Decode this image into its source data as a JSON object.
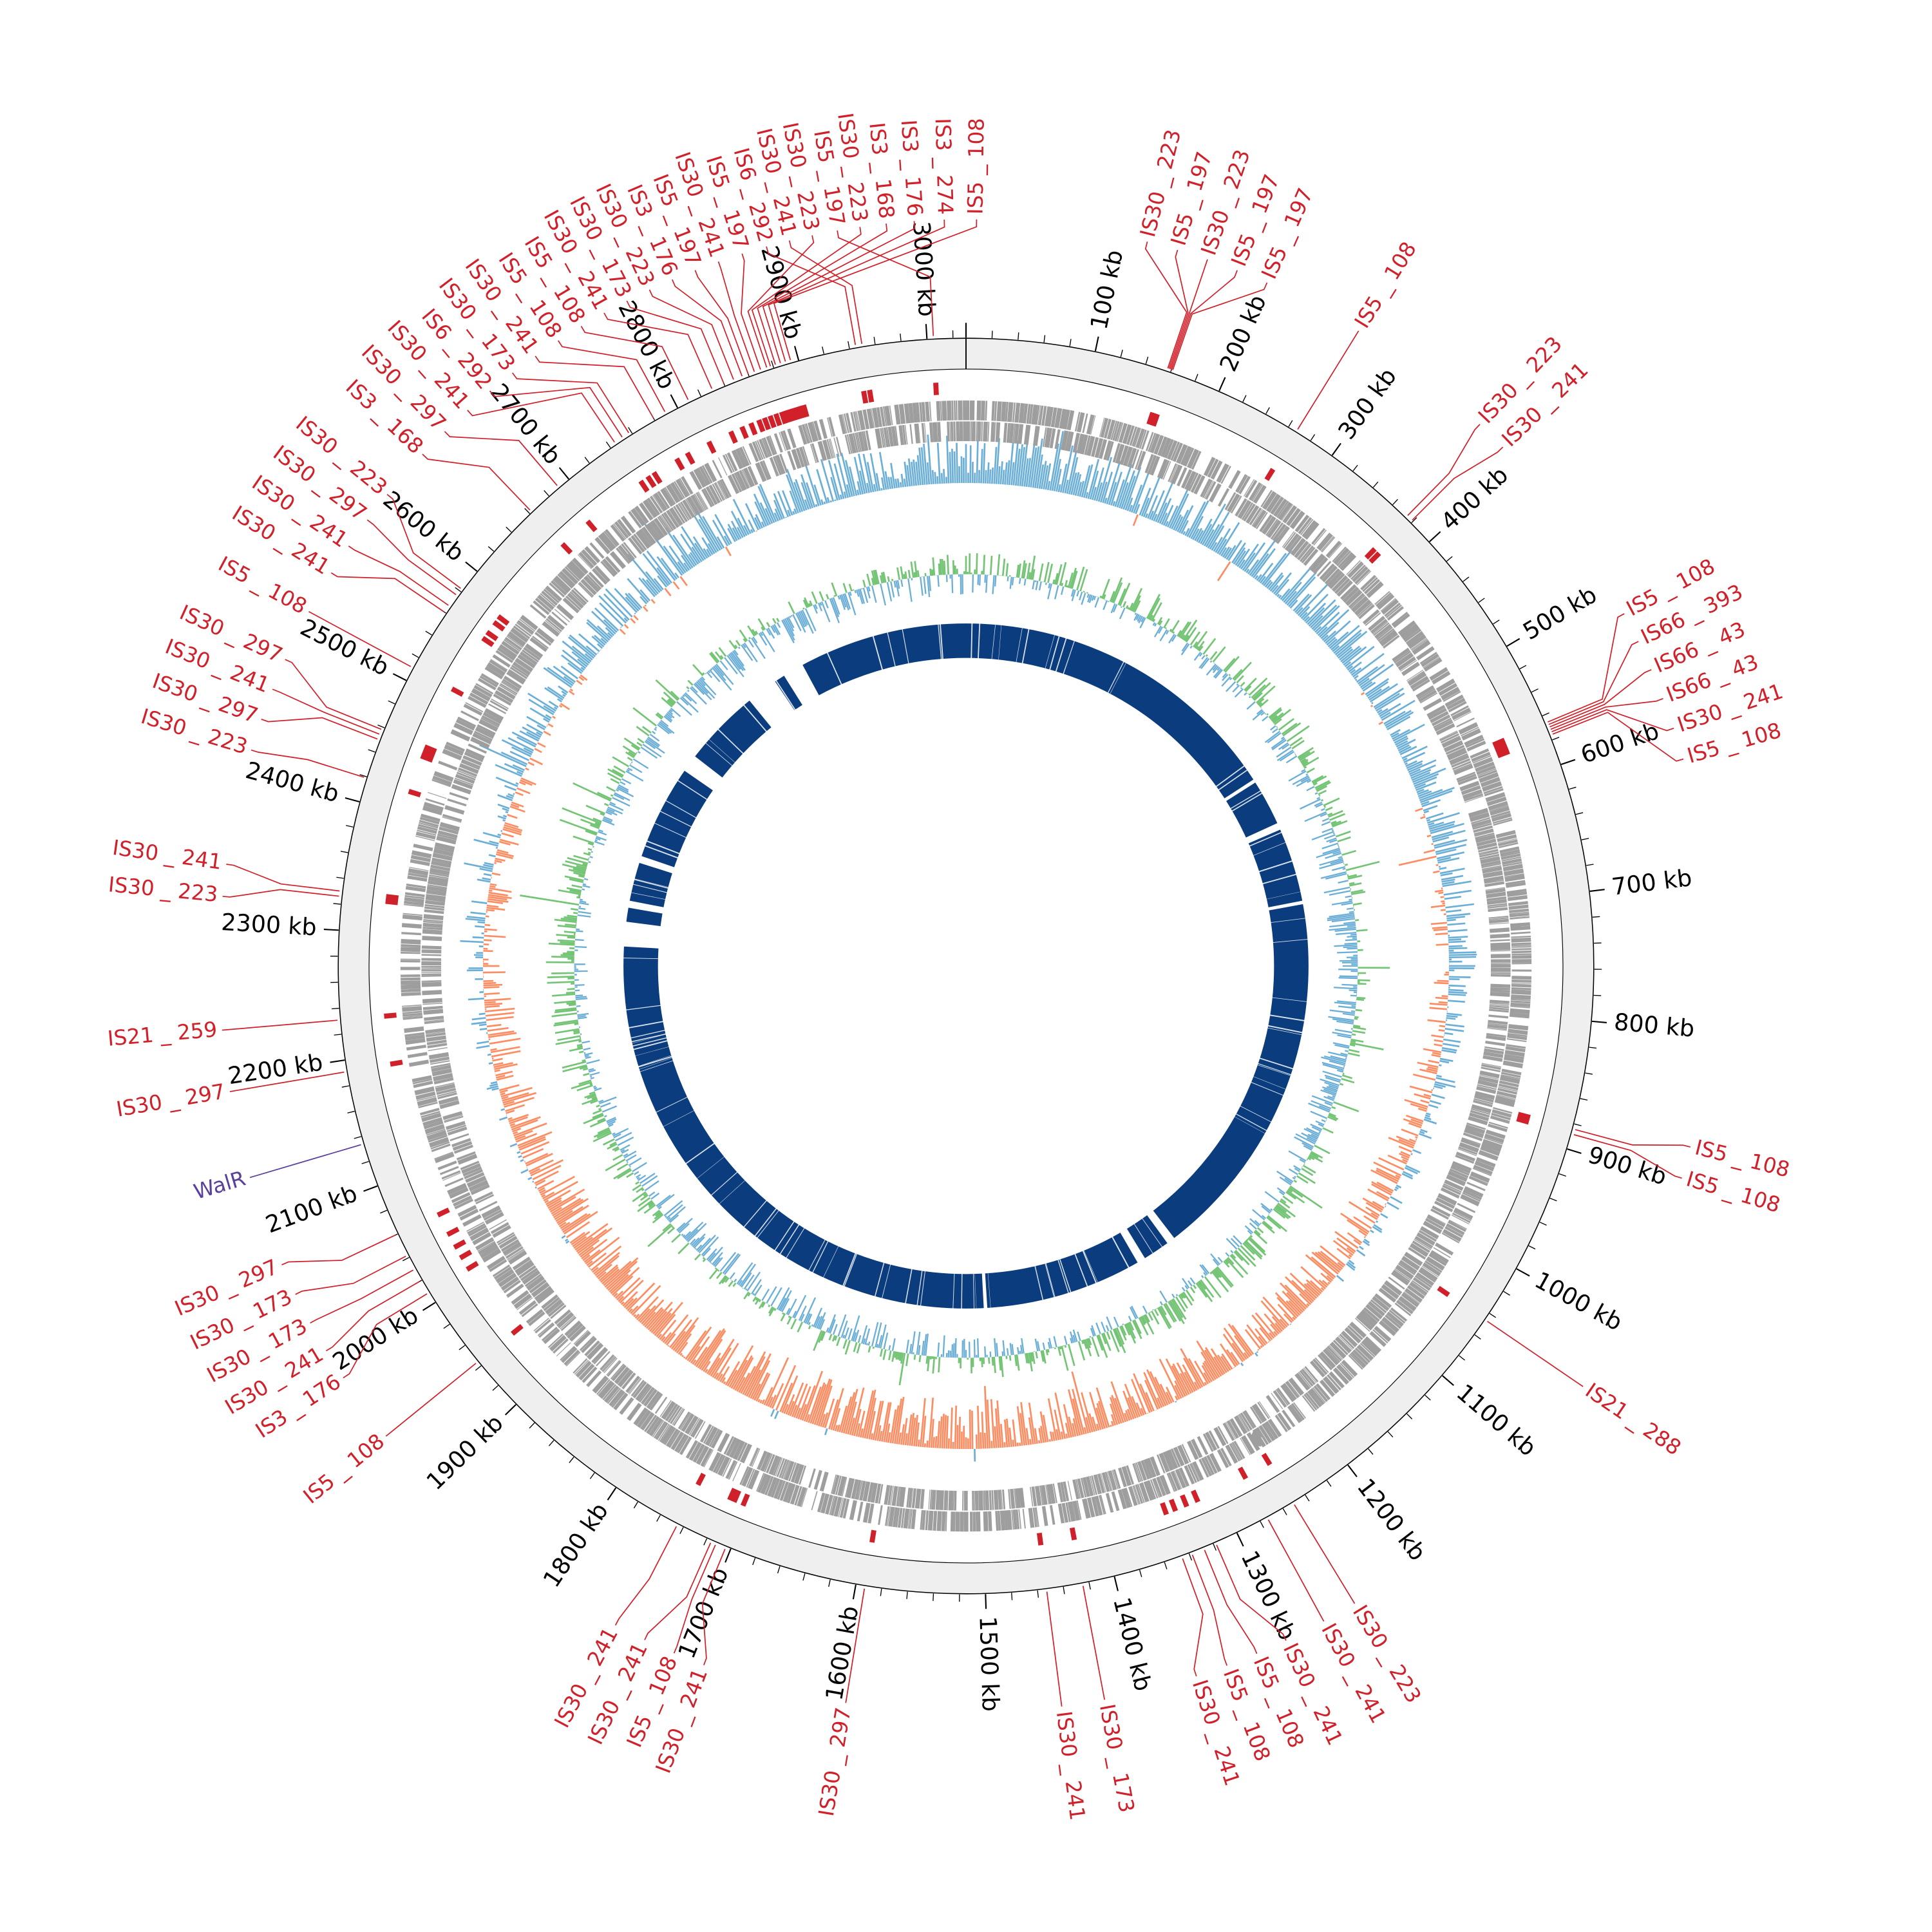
{
  "chart_data": {
    "type": "circular-genome-map",
    "genome_length_kb": 3030,
    "tick_interval_kb": 100,
    "minor_tick_interval_kb": 20,
    "tick_unit": "kb",
    "tick_labels": [
      "100 kb",
      "200 kb",
      "300 kb",
      "400 kb",
      "500 kb",
      "600 kb",
      "700 kb",
      "800 kb",
      "900 kb",
      "1000 kb",
      "1100 kb",
      "1200 kb",
      "1300 kb",
      "1400 kb",
      "1500 kb",
      "1600 kb",
      "1700 kb",
      "1800 kb",
      "1900 kb",
      "2000 kb",
      "2100 kb",
      "2200 kb",
      "2300 kb",
      "2400 kb",
      "2500 kb",
      "2600 kb",
      "2700 kb",
      "2800 kb",
      "2900 kb",
      "3000 kb"
    ],
    "tracks": [
      "ideogram",
      "IS elements",
      "genes (both strands)",
      "GC skew",
      "GC content",
      "core regions"
    ],
    "features": [
      {
        "label": "IS5 _ 108",
        "position_kb": 267,
        "kind": "IS"
      },
      {
        "label": "IS30 _ 223",
        "position_kb": 374,
        "kind": "IS"
      },
      {
        "label": "IS30 _ 241",
        "position_kb": 379,
        "kind": "IS"
      },
      {
        "label": "IS5 _ 108",
        "position_kb": 566,
        "kind": "IS"
      },
      {
        "label": "IS66 _ 393",
        "position_kb": 568,
        "kind": "IS"
      },
      {
        "label": "IS66 _ 43",
        "position_kb": 570,
        "kind": "IS"
      },
      {
        "label": "IS66 _ 43",
        "position_kb": 572,
        "kind": "IS"
      },
      {
        "label": "IS30 _ 241",
        "position_kb": 574,
        "kind": "IS"
      },
      {
        "label": "IS5 _ 108",
        "position_kb": 576,
        "kind": "IS"
      },
      {
        "label": "IS5 _ 108",
        "position_kb": 884,
        "kind": "IS"
      },
      {
        "label": "IS5 _ 108",
        "position_kb": 888,
        "kind": "IS"
      },
      {
        "label": "IS21 _ 288",
        "position_kb": 1046,
        "kind": "IS"
      },
      {
        "label": "IS30 _ 223",
        "position_kb": 1251,
        "kind": "IS"
      },
      {
        "label": "IS30 _ 241",
        "position_kb": 1274,
        "kind": "IS"
      },
      {
        "label": "IS30 _ 241",
        "position_kb": 1318,
        "kind": "IS"
      },
      {
        "label": "IS5 _ 108",
        "position_kb": 1328,
        "kind": "IS"
      },
      {
        "label": "IS5 _ 108",
        "position_kb": 1338,
        "kind": "IS"
      },
      {
        "label": "IS30 _ 241",
        "position_kb": 1346,
        "kind": "IS"
      },
      {
        "label": "IS30 _ 173",
        "position_kb": 1425,
        "kind": "IS"
      },
      {
        "label": "IS30 _ 241",
        "position_kb": 1453,
        "kind": "IS"
      },
      {
        "label": "IS30 _ 297",
        "position_kb": 1593,
        "kind": "IS"
      },
      {
        "label": "IS30 _ 241",
        "position_kb": 1704,
        "kind": "IS"
      },
      {
        "label": "IS5 _ 108",
        "position_kb": 1712,
        "kind": "IS"
      },
      {
        "label": "IS30 _ 241",
        "position_kb": 1716,
        "kind": "IS"
      },
      {
        "label": "IS30 _ 241",
        "position_kb": 1745,
        "kind": "IS"
      },
      {
        "label": "IS5 _ 108",
        "position_kb": 1944,
        "kind": "IS"
      },
      {
        "label": "IS3 _ 176",
        "position_kb": 2009,
        "kind": "IS"
      },
      {
        "label": "IS30 _ 241",
        "position_kb": 2020,
        "kind": "IS"
      },
      {
        "label": "IS30 _ 173",
        "position_kb": 2030,
        "kind": "IS"
      },
      {
        "label": "IS30 _ 173",
        "position_kb": 2042,
        "kind": "IS"
      },
      {
        "label": "IS30 _ 297",
        "position_kb": 2060,
        "kind": "IS"
      },
      {
        "label": "WalR",
        "position_kb": 2134,
        "kind": "gene"
      },
      {
        "label": "IS30 _ 297",
        "position_kb": 2191,
        "kind": "IS"
      },
      {
        "label": "IS21 _ 259",
        "position_kb": 2231,
        "kind": "IS"
      },
      {
        "label": "IS30 _ 223",
        "position_kb": 2326,
        "kind": "IS"
      },
      {
        "label": "IS30 _ 241",
        "position_kb": 2330,
        "kind": "IS"
      },
      {
        "label": "IS30 _ 223",
        "position_kb": 2419,
        "kind": "IS"
      },
      {
        "label": "IS30 _ 297",
        "position_kb": 2450,
        "kind": "IS"
      },
      {
        "label": "IS30 _ 241",
        "position_kb": 2454,
        "kind": "IS"
      },
      {
        "label": "IS30 _ 297",
        "position_kb": 2458,
        "kind": "IS"
      },
      {
        "label": "IS5 _ 108",
        "position_kb": 2511,
        "kind": "IS"
      },
      {
        "label": "IS30 _ 241",
        "position_kb": 2560,
        "kind": "IS"
      },
      {
        "label": "IS30 _ 241",
        "position_kb": 2566,
        "kind": "IS"
      },
      {
        "label": "IS30 _ 297",
        "position_kb": 2576,
        "kind": "IS"
      },
      {
        "label": "IS30 _ 223",
        "position_kb": 2582,
        "kind": "IS"
      },
      {
        "label": "IS3 _ 168",
        "position_kb": 2662,
        "kind": "IS"
      },
      {
        "label": "IS30 _ 297",
        "position_kb": 2690,
        "kind": "IS"
      },
      {
        "label": "IS30 _ 241",
        "position_kb": 2745,
        "kind": "IS"
      },
      {
        "label": "IS6 _ 292",
        "position_kb": 2752,
        "kind": "IS"
      },
      {
        "label": "IS30 _ 173",
        "position_kb": 2758,
        "kind": "IS"
      },
      {
        "label": "IS30 _ 241",
        "position_kb": 2780,
        "kind": "IS"
      },
      {
        "label": "IS5 _ 108",
        "position_kb": 2790,
        "kind": "IS"
      },
      {
        "label": "IS5 _ 108",
        "position_kb": 2810,
        "kind": "IS"
      },
      {
        "label": "IS30 _ 241",
        "position_kb": 2830,
        "kind": "IS"
      },
      {
        "label": "IS30 _ 173",
        "position_kb": 2840,
        "kind": "IS"
      },
      {
        "label": "IS30 _ 223",
        "position_kb": 2848,
        "kind": "IS"
      },
      {
        "label": "IS3 _ 176",
        "position_kb": 2855,
        "kind": "IS"
      },
      {
        "label": "IS5 _ 197",
        "position_kb": 2860,
        "kind": "IS"
      },
      {
        "label": "IS30 _ 241",
        "position_kb": 2865,
        "kind": "IS"
      },
      {
        "label": "IS5 _ 197",
        "position_kb": 2870,
        "kind": "IS"
      },
      {
        "label": "IS6 _ 292",
        "position_kb": 2945,
        "kind": "IS"
      },
      {
        "label": "IS30 _ 241",
        "position_kb": 2950,
        "kind": "IS"
      },
      {
        "label": "IS30 _ 223",
        "position_kb": 2875,
        "kind": "IS"
      },
      {
        "label": "IS5 _ 197",
        "position_kb": 3005,
        "kind": "IS"
      },
      {
        "label": "IS30 _ 223",
        "position_kb": 2878,
        "kind": "IS"
      },
      {
        "label": "IS3 _ 168",
        "position_kb": 2882,
        "kind": "IS"
      },
      {
        "label": "IS3 _ 176",
        "position_kb": 2886,
        "kind": "IS"
      },
      {
        "label": "IS3 _ 274",
        "position_kb": 2890,
        "kind": "IS"
      },
      {
        "label": "IS5 _ 108",
        "position_kb": 2894,
        "kind": "IS"
      },
      {
        "label": "IS30 _ 223",
        "position_kb": 157,
        "kind": "IS"
      },
      {
        "label": "IS5 _ 197",
        "position_kb": 158,
        "kind": "IS"
      },
      {
        "label": "IS30 _ 223",
        "position_kb": 159,
        "kind": "IS"
      },
      {
        "label": "IS5 _ 197",
        "position_kb": 160,
        "kind": "IS"
      },
      {
        "label": "IS5 _ 197",
        "position_kb": 161,
        "kind": "IS"
      }
    ]
  },
  "colors": {
    "is_element": "#d0202a",
    "gene_feature": "#5a3f9e",
    "ideogram_fill": "#efefef",
    "genes": "#9e9e9e",
    "skew_positive": "#9ecae1",
    "skew_positive_line": "#6baed6",
    "skew_negative": "#fc8d62",
    "gc_positive": "#74c476",
    "gc_negative": "#6baed6",
    "core": "#0b3d7e"
  }
}
